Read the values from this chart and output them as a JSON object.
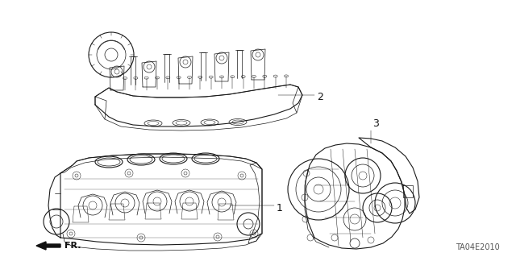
{
  "background_color": "#ffffff",
  "line_color": "#1a1a1a",
  "label_color": "#111111",
  "part_labels": [
    "1",
    "2",
    "3"
  ],
  "fr_text": "FR.",
  "diagram_code": "TA04E2010",
  "lw_main": 0.8,
  "lw_detail": 0.5,
  "lw_thin": 0.35
}
